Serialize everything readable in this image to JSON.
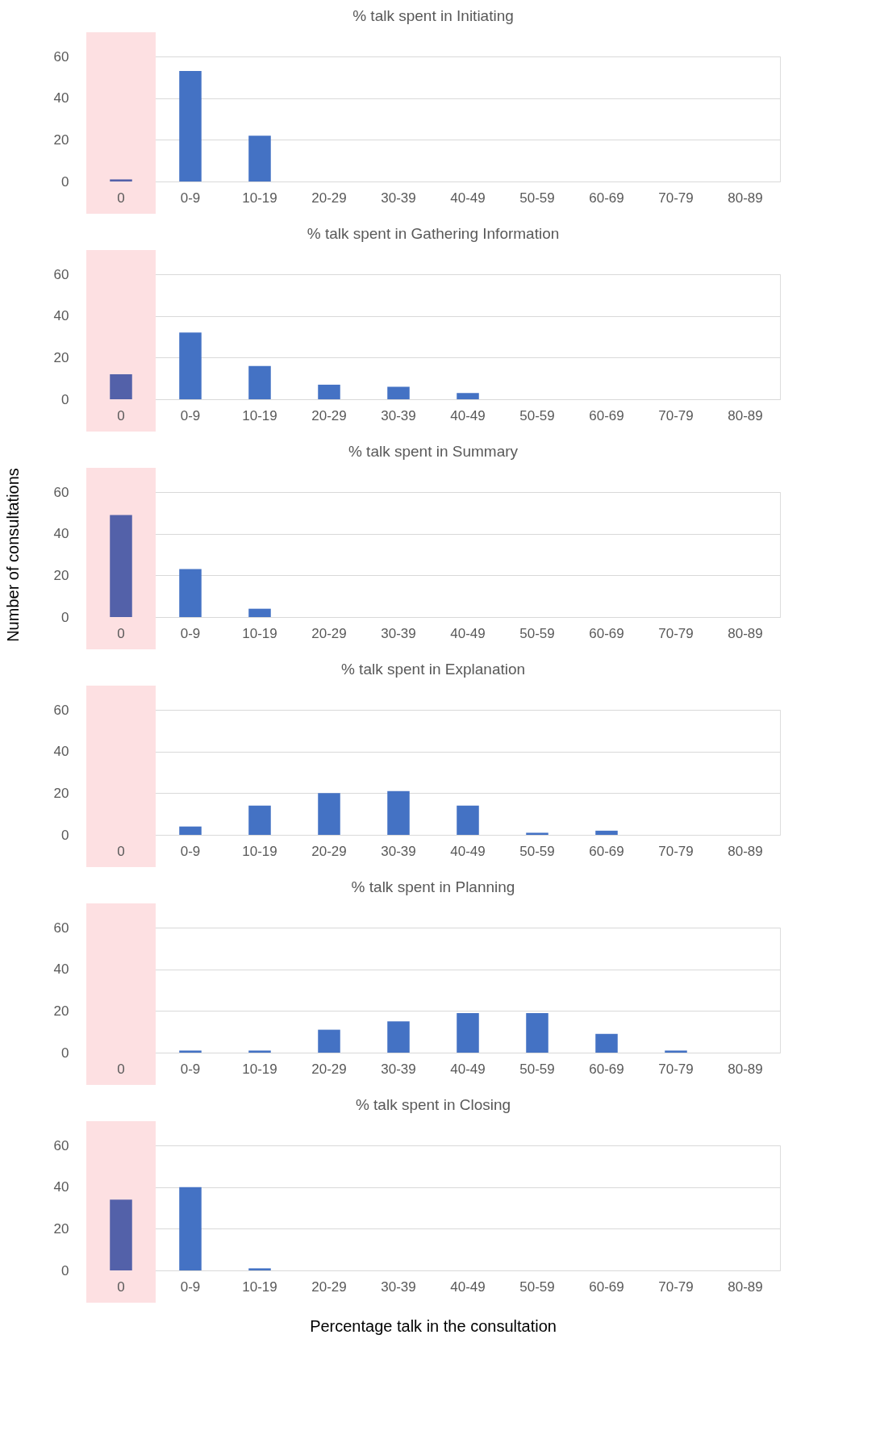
{
  "chart_data": [
    {
      "type": "bar",
      "title": "% talk spent in Initiating",
      "categories": [
        "0",
        "0-9",
        "10-19",
        "20-29",
        "30-39",
        "40-49",
        "50-59",
        "60-69",
        "70-79",
        "80-89"
      ],
      "values": [
        1,
        53,
        22,
        0,
        0,
        0,
        0,
        0,
        0,
        0
      ],
      "colors": [
        "#5361a9",
        "#4472c4",
        "#4472c4",
        "#4472c4",
        "#4472c4",
        "#4472c4",
        "#4472c4",
        "#4472c4",
        "#4472c4",
        "#4472c4"
      ],
      "ylim": [
        0,
        60
      ],
      "yticks": [
        0,
        20,
        40,
        60
      ],
      "grid": "y",
      "bands": [
        {
          "axis": "x",
          "from": "0",
          "to": "0",
          "color": "#fde0e2"
        }
      ]
    },
    {
      "type": "bar",
      "title": "% talk spent in Gathering Information",
      "categories": [
        "0",
        "0-9",
        "10-19",
        "20-29",
        "30-39",
        "40-49",
        "50-59",
        "60-69",
        "70-79",
        "80-89"
      ],
      "values": [
        12,
        32,
        16,
        7,
        6,
        3,
        0,
        0,
        0,
        0
      ],
      "colors": [
        "#5361a9",
        "#4472c4",
        "#4472c4",
        "#4472c4",
        "#4472c4",
        "#4472c4",
        "#4472c4",
        "#4472c4",
        "#4472c4",
        "#4472c4"
      ],
      "ylim": [
        0,
        60
      ],
      "yticks": [
        0,
        20,
        40,
        60
      ],
      "grid": "y",
      "bands": [
        {
          "axis": "x",
          "from": "0",
          "to": "0",
          "color": "#fde0e2"
        }
      ]
    },
    {
      "type": "bar",
      "title": "% talk spent in Summary",
      "ylabel": "Number of consultations",
      "categories": [
        "0",
        "0-9",
        "10-19",
        "20-29",
        "30-39",
        "40-49",
        "50-59",
        "60-69",
        "70-79",
        "80-89"
      ],
      "values": [
        49,
        23,
        4,
        0,
        0,
        0,
        0,
        0,
        0,
        0
      ],
      "colors": [
        "#5361a9",
        "#4472c4",
        "#4472c4",
        "#4472c4",
        "#4472c4",
        "#4472c4",
        "#4472c4",
        "#4472c4",
        "#4472c4",
        "#4472c4"
      ],
      "ylim": [
        0,
        60
      ],
      "yticks": [
        0,
        20,
        40,
        60
      ],
      "grid": "y",
      "bands": [
        {
          "axis": "x",
          "from": "0",
          "to": "0",
          "color": "#fde0e2"
        }
      ]
    },
    {
      "type": "bar",
      "title": "% talk spent in Explanation",
      "categories": [
        "0",
        "0-9",
        "10-19",
        "20-29",
        "30-39",
        "40-49",
        "50-59",
        "60-69",
        "70-79",
        "80-89"
      ],
      "values": [
        0,
        4,
        14,
        20,
        21,
        14,
        1,
        2,
        0,
        0
      ],
      "colors": [
        "#5361a9",
        "#4472c4",
        "#4472c4",
        "#4472c4",
        "#4472c4",
        "#4472c4",
        "#4472c4",
        "#4472c4",
        "#4472c4",
        "#4472c4"
      ],
      "ylim": [
        0,
        60
      ],
      "yticks": [
        0,
        20,
        40,
        60
      ],
      "grid": "y",
      "bands": [
        {
          "axis": "x",
          "from": "0",
          "to": "0",
          "color": "#fde0e2"
        }
      ]
    },
    {
      "type": "bar",
      "title": "% talk spent in Planning",
      "categories": [
        "0",
        "0-9",
        "10-19",
        "20-29",
        "30-39",
        "40-49",
        "50-59",
        "60-69",
        "70-79",
        "80-89"
      ],
      "values": [
        0,
        1,
        1,
        11,
        15,
        19,
        19,
        9,
        1,
        0
      ],
      "colors": [
        "#5361a9",
        "#4472c4",
        "#4472c4",
        "#4472c4",
        "#4472c4",
        "#4472c4",
        "#4472c4",
        "#4472c4",
        "#4472c4",
        "#4472c4"
      ],
      "ylim": [
        0,
        60
      ],
      "yticks": [
        0,
        20,
        40,
        60
      ],
      "grid": "y",
      "bands": [
        {
          "axis": "x",
          "from": "0",
          "to": "0",
          "color": "#fde0e2"
        }
      ]
    },
    {
      "type": "bar",
      "title": "% talk spent in Closing",
      "xlabel": "Percentage talk in the consultation",
      "categories": [
        "0",
        "0-9",
        "10-19",
        "20-29",
        "30-39",
        "40-49",
        "50-59",
        "60-69",
        "70-79",
        "80-89"
      ],
      "values": [
        34,
        40,
        1,
        0,
        0,
        0,
        0,
        0,
        0,
        0
      ],
      "colors": [
        "#5361a9",
        "#4472c4",
        "#4472c4",
        "#4472c4",
        "#4472c4",
        "#4472c4",
        "#4472c4",
        "#4472c4",
        "#4472c4",
        "#4472c4"
      ],
      "ylim": [
        0,
        60
      ],
      "yticks": [
        0,
        20,
        40,
        60
      ],
      "grid": "y",
      "bands": [
        {
          "axis": "x",
          "from": "0",
          "to": "0",
          "color": "#fde0e2"
        }
      ]
    }
  ]
}
